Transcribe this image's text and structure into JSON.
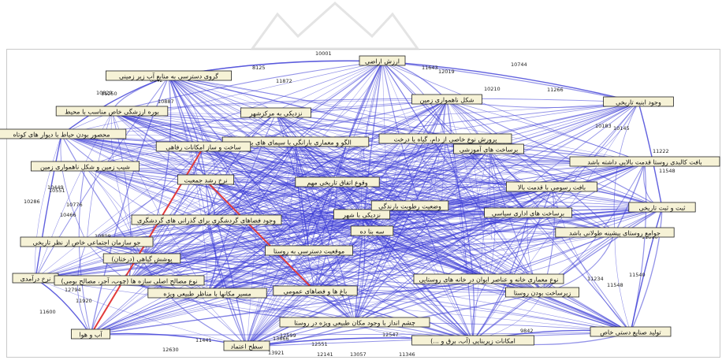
{
  "colors": {
    "edge": "#3a3ad6",
    "highlight": "#e23a3a",
    "node_fill": "#f6f2d6",
    "node_border": "#222222",
    "watermark": "#d9d9d9"
  },
  "nodes": [
    {
      "id": "n1",
      "label": "ارزش اراضی"
    },
    {
      "id": "n2",
      "label": "گروی دسترسی به منابع آب زیر زمینی"
    },
    {
      "id": "n3",
      "label": "شکل ناهمواری زمین"
    },
    {
      "id": "n4",
      "label": "وجود ابنیه تاریخی"
    },
    {
      "id": "n5",
      "label": "نزدیکی به مرکزشهر"
    },
    {
      "id": "n6",
      "label": "بوره ارزشگی خاص مناسب با محیط"
    },
    {
      "id": "n7",
      "label": "محصور بودن حیاط با دیوار های کوتاه"
    },
    {
      "id": "n8",
      "label": "الگو و معماری بارانگی با سیمای های بومی"
    },
    {
      "id": "n9",
      "label": "پرورش نوع خاصی از دام، گیاه یا درخت"
    },
    {
      "id": "n10",
      "label": "ساخت و ساز امکانات رفاهی"
    },
    {
      "id": "n11",
      "label": "برساخت های آموزشی"
    },
    {
      "id": "n12",
      "label": "بافت کالبدی روستا قدمت بالایی داشته باشد"
    },
    {
      "id": "n13",
      "label": "شیب زمین و شکل ناهمواری زمین"
    },
    {
      "id": "n14",
      "label": "نرخ رشد جمعیت"
    },
    {
      "id": "n15",
      "label": "وقوع اتفاق تاریخی مهم"
    },
    {
      "id": "n16",
      "label": "بافت رسومی با قدمت بالا"
    },
    {
      "id": "n17",
      "label": "ثبت و ثبت تاریخی"
    },
    {
      "id": "n18",
      "label": "نزدیکی با شهر"
    },
    {
      "id": "n19",
      "label": "وجود فضاهای گردشگری برای گذرانی های گردشگری"
    },
    {
      "id": "n20",
      "label": "وضعیت رطوبت بارندگی"
    },
    {
      "id": "n21",
      "label": "برساخت های اداری سیاسی"
    },
    {
      "id": "n22",
      "label": "جوامع روستای پیشینه طولانی باشد"
    },
    {
      "id": "n23",
      "label": "جو سازمان اجتماعی خاص از نظر تاریخی"
    },
    {
      "id": "n24",
      "label": "سه بنا ده"
    },
    {
      "id": "n25",
      "label": "موقعیت دسترسی به روستا"
    },
    {
      "id": "n26",
      "label": "پوشش گیاهی (درختان)"
    },
    {
      "id": "n27",
      "label": "نرخ درآمدی"
    },
    {
      "id": "n28",
      "label": "نوع مصالح اصلی سازه ها (چوب، آجر، مصالح بومی)"
    },
    {
      "id": "n29",
      "label": "نوع معماری خانه و عناصر ایوان در خانه های روستایی"
    },
    {
      "id": "n30",
      "label": "مسیر مکانها با مناظر طبیعی ویژه"
    },
    {
      "id": "n31",
      "label": "باغ ها و فضاهای عمومی"
    },
    {
      "id": "n32",
      "label": "زیرساخت بودن روستا"
    },
    {
      "id": "n33",
      "label": "آب و هوا"
    },
    {
      "id": "n34",
      "label": "چشم انداز با وجود مکان طبیعی ویژه در روستا"
    },
    {
      "id": "n35",
      "label": "تولید صنایع دستی خاص"
    },
    {
      "id": "n36",
      "label": "سطح اعتماد"
    },
    {
      "id": "n37",
      "label": "امکانات زیربنایی (آب، برق و ...)"
    }
  ],
  "highlight_edges": [
    [
      "n10",
      "n33"
    ],
    [
      "n14",
      "n31"
    ]
  ],
  "edge_labels": [
    "10001",
    "11643",
    "12019",
    "10744",
    "8125",
    "8842",
    "11872",
    "11250",
    "10829",
    "10887",
    "10210",
    "10145",
    "11222",
    "11548",
    "11860",
    "10286",
    "10449",
    "10551",
    "10776",
    "10466",
    "10451",
    "11234",
    "11548",
    "11540",
    "10809",
    "12794",
    "11920",
    "11600",
    "12630",
    "11441",
    "13921",
    "12141",
    "13057",
    "11346",
    "12547",
    "13866",
    "12599",
    "12551",
    "11715",
    "9842",
    "11266",
    "10183"
  ]
}
